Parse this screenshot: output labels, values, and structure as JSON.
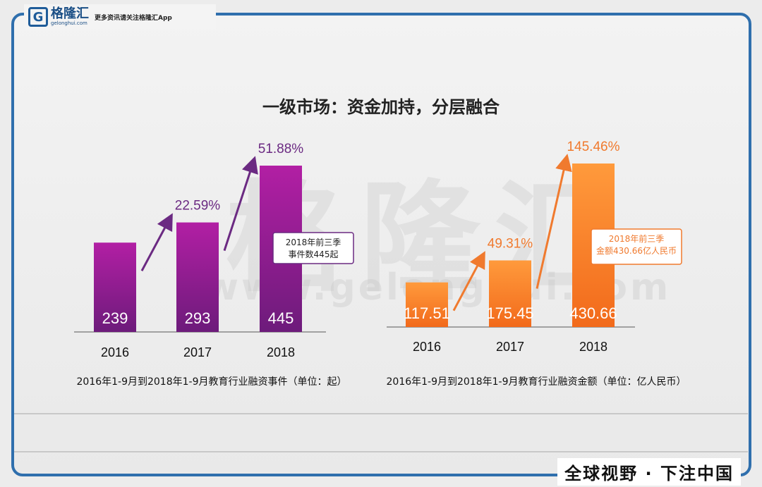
{
  "brand": {
    "logo_letter": "G",
    "name_cn": "格隆汇",
    "name_en": "gelonghui.com",
    "tagline": "更多资讯请关注格隆汇App",
    "watermark_cn": "格隆汇",
    "watermark_en": "www.gelonghui.com"
  },
  "page": {
    "title": "一级市场：资金加持，分层融合",
    "footer_slogan": "全球视野 · 下注中国"
  },
  "colors": {
    "frame": "#2f6fad",
    "left_bar_top": "#b21fa4",
    "left_bar_bottom": "#6d1b7b",
    "left_accent": "#6b2a82",
    "right_bar_top": "#ff9a3c",
    "right_bar_bottom": "#f26a1b",
    "right_accent": "#f07a2e"
  },
  "chart_data": [
    {
      "type": "bar",
      "title": "",
      "categories": [
        "2016",
        "2017",
        "2018"
      ],
      "values": [
        239,
        293,
        445
      ],
      "value_labels": [
        "239",
        "293",
        "445"
      ],
      "growth_labels": [
        "22.59%",
        "51.88%"
      ],
      "annotation": [
        "2018年前三季",
        "事件数445起"
      ],
      "caption": "2016年1-9月到2018年1-9月教育行业融资事件（单位：起）",
      "xlabel": "",
      "ylabel": "",
      "ylim": [
        0,
        445
      ]
    },
    {
      "type": "bar",
      "title": "",
      "categories": [
        "2016",
        "2017",
        "2018"
      ],
      "values": [
        117.51,
        175.45,
        430.66
      ],
      "value_labels": [
        "117.51",
        "175.45",
        "430.66"
      ],
      "growth_labels": [
        "49.31%",
        "145.46%"
      ],
      "annotation": [
        "2018年前三季",
        "金额430.66亿人民币"
      ],
      "caption": "2016年1-9月到2018年1-9月教育行业融资金额（单位：亿人民币）",
      "xlabel": "",
      "ylabel": "",
      "ylim": [
        0,
        430.66
      ]
    }
  ]
}
